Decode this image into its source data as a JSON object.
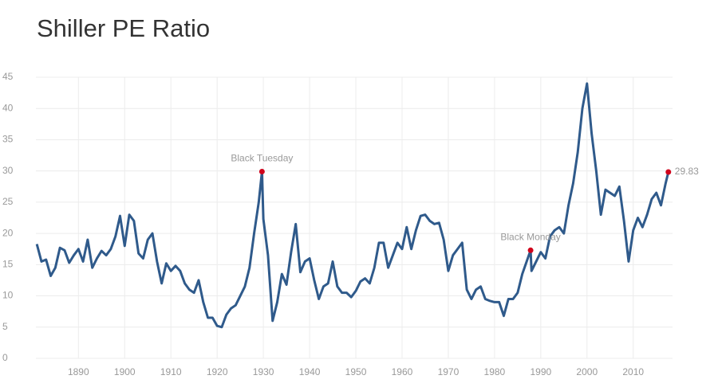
{
  "chart_data": {
    "type": "line",
    "title": "Shiller PE Ratio",
    "x": [
      1881,
      1882,
      1883,
      1884,
      1885,
      1886,
      1887,
      1888,
      1889,
      1890,
      1891,
      1892,
      1893,
      1894,
      1895,
      1896,
      1897,
      1898,
      1899,
      1900,
      1901,
      1902,
      1903,
      1904,
      1905,
      1906,
      1907,
      1908,
      1909,
      1910,
      1911,
      1912,
      1913,
      1914,
      1915,
      1916,
      1917,
      1918,
      1919,
      1920,
      1921,
      1922,
      1923,
      1924,
      1925,
      1926,
      1927,
      1928,
      1929,
      1929.7,
      1930,
      1931,
      1932,
      1933,
      1934,
      1935,
      1936,
      1937,
      1938,
      1939,
      1940,
      1941,
      1942,
      1943,
      1944,
      1945,
      1946,
      1947,
      1948,
      1949,
      1950,
      1951,
      1952,
      1953,
      1954,
      1955,
      1956,
      1957,
      1958,
      1959,
      1960,
      1961,
      1962,
      1963,
      1964,
      1965,
      1966,
      1967,
      1968,
      1969,
      1970,
      1971,
      1972,
      1973,
      1974,
      1975,
      1976,
      1977,
      1978,
      1979,
      1980,
      1981,
      1982,
      1983,
      1984,
      1985,
      1986,
      1987.8,
      1988,
      1989,
      1990,
      1991,
      1992,
      1993,
      1994,
      1995,
      1996,
      1997,
      1998,
      1999,
      2000,
      2001,
      2002,
      2003,
      2004,
      2005,
      2006,
      2007,
      2008,
      2009,
      2010,
      2011,
      2012,
      2013,
      2014,
      2015,
      2016,
      2017,
      2017.6
    ],
    "series": [
      {
        "color": "#2f5a8b",
        "values": [
          18.3,
          15.5,
          15.8,
          13.2,
          14.5,
          17.7,
          17.3,
          15.3,
          16.5,
          17.5,
          15.5,
          19.0,
          14.5,
          16.0,
          17.2,
          16.5,
          17.5,
          19.5,
          22.8,
          18.0,
          23.0,
          22.0,
          16.8,
          16.0,
          19.0,
          20.0,
          15.5,
          12.0,
          15.2,
          14.0,
          14.8,
          14.0,
          12.0,
          11.0,
          10.5,
          12.5,
          9.0,
          6.5,
          6.5,
          5.2,
          5.0,
          7.0,
          8.0,
          8.5,
          10.0,
          11.5,
          14.5,
          20.0,
          25.0,
          29.9,
          22.3,
          16.5,
          6.0,
          9.0,
          13.5,
          11.8,
          17.0,
          21.5,
          13.8,
          15.5,
          16.0,
          12.5,
          9.5,
          11.5,
          12.0,
          15.5,
          11.5,
          10.5,
          10.5,
          9.8,
          10.8,
          12.3,
          12.8,
          12.0,
          14.5,
          18.5,
          18.5,
          14.5,
          16.5,
          18.5,
          17.5,
          21.0,
          17.5,
          20.5,
          22.8,
          23.0,
          22.0,
          21.5,
          21.7,
          19.0,
          14.0,
          16.5,
          17.5,
          18.5,
          11.0,
          9.5,
          11.0,
          11.5,
          9.5,
          9.2,
          9.0,
          9.0,
          6.8,
          9.5,
          9.5,
          10.5,
          13.5,
          17.3,
          14.0,
          15.5,
          17.0,
          16.0,
          19.5,
          20.5,
          21.0,
          20.0,
          24.5,
          28.0,
          33.0,
          40.0,
          44.0,
          36.0,
          30.0,
          23.0,
          27.0,
          26.5,
          26.0,
          27.5,
          22.0,
          15.5,
          20.5,
          22.5,
          21.0,
          23.0,
          25.5,
          26.5,
          24.5,
          28.0,
          29.83
        ]
      }
    ],
    "annotations": [
      {
        "text": "Black Tuesday",
        "x": 1929.7,
        "y": 29.9
      },
      {
        "text": "Black Monday",
        "x": 1987.8,
        "y": 17.3
      },
      {
        "x": 2017.6,
        "y": 29.83
      }
    ],
    "marker_color": "#d0021b",
    "xlim": [
      1880.8,
      2018.5
    ],
    "xticks": [
      1890,
      1900,
      1910,
      1920,
      1930,
      1940,
      1950,
      1960,
      1970,
      1980,
      1990,
      2000,
      2010
    ],
    "ylim": [
      0,
      45
    ],
    "yticks": [
      0,
      5,
      10,
      15,
      20,
      25,
      30,
      35,
      40,
      45
    ],
    "grid": true
  }
}
